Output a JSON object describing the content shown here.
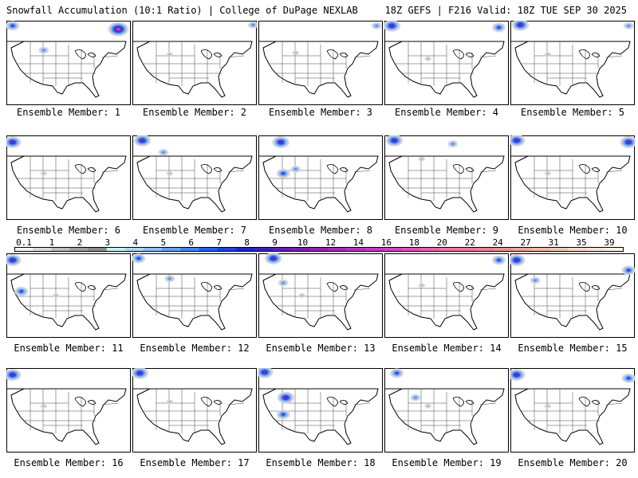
{
  "header": {
    "title_left": "Snowfall Accumulation (10:1 Ratio) | College of DuPage NEXLAB",
    "title_right": "18Z GEFS | F216 Valid: 18Z TUE SEP 30 2025"
  },
  "members": [
    {
      "label": "Ensemble Member: 1",
      "snow": [
        [
          0.05,
          0.06,
          3
        ],
        [
          0.9,
          0.1,
          5
        ],
        [
          0.3,
          0.35,
          2
        ]
      ]
    },
    {
      "label": "Ensemble Member: 2",
      "snow": [
        [
          0.97,
          0.05,
          2
        ],
        [
          0.3,
          0.4,
          1
        ]
      ]
    },
    {
      "label": "Ensemble Member: 3",
      "snow": [
        [
          0.95,
          0.06,
          2
        ],
        [
          0.3,
          0.38,
          1
        ]
      ]
    },
    {
      "label": "Ensemble Member: 4",
      "snow": [
        [
          0.06,
          0.06,
          4
        ],
        [
          0.92,
          0.08,
          3
        ],
        [
          0.35,
          0.45,
          1
        ]
      ]
    },
    {
      "label": "Ensemble Member: 5",
      "snow": [
        [
          0.08,
          0.05,
          4
        ],
        [
          0.95,
          0.06,
          2
        ],
        [
          0.3,
          0.4,
          1
        ]
      ]
    },
    {
      "label": "Ensemble Member: 6",
      "snow": [
        [
          0.05,
          0.08,
          4
        ],
        [
          0.3,
          0.45,
          1
        ]
      ]
    },
    {
      "label": "Ensemble Member: 7",
      "snow": [
        [
          0.08,
          0.06,
          4
        ],
        [
          0.25,
          0.2,
          2
        ],
        [
          0.3,
          0.45,
          1
        ]
      ]
    },
    {
      "label": "Ensemble Member: 8",
      "snow": [
        [
          0.18,
          0.08,
          4
        ],
        [
          0.2,
          0.45,
          3
        ],
        [
          0.3,
          0.4,
          2
        ]
      ]
    },
    {
      "label": "Ensemble Member: 9",
      "snow": [
        [
          0.08,
          0.06,
          4
        ],
        [
          0.3,
          0.28,
          1
        ],
        [
          0.55,
          0.1,
          2
        ]
      ]
    },
    {
      "label": "Ensemble Member: 10",
      "snow": [
        [
          0.05,
          0.06,
          4
        ],
        [
          0.95,
          0.08,
          4
        ],
        [
          0.3,
          0.45,
          1
        ]
      ]
    },
    {
      "label": "Ensemble Member: 11",
      "snow": [
        [
          0.05,
          0.08,
          4
        ],
        [
          0.12,
          0.45,
          3
        ],
        [
          0.4,
          0.5,
          1
        ]
      ]
    },
    {
      "label": "Ensemble Member: 12",
      "snow": [
        [
          0.05,
          0.06,
          3
        ],
        [
          0.3,
          0.3,
          2
        ]
      ]
    },
    {
      "label": "Ensemble Member: 13",
      "snow": [
        [
          0.12,
          0.06,
          4
        ],
        [
          0.2,
          0.35,
          2
        ],
        [
          0.35,
          0.5,
          1
        ]
      ]
    },
    {
      "label": "Ensemble Member: 14",
      "snow": [
        [
          0.92,
          0.08,
          3
        ],
        [
          0.3,
          0.38,
          1
        ]
      ]
    },
    {
      "label": "Ensemble Member: 15",
      "snow": [
        [
          0.05,
          0.08,
          4
        ],
        [
          0.95,
          0.2,
          3
        ],
        [
          0.2,
          0.32,
          2
        ]
      ]
    },
    {
      "label": "Ensemble Member: 16",
      "snow": [
        [
          0.05,
          0.08,
          4
        ],
        [
          0.3,
          0.45,
          1
        ]
      ]
    },
    {
      "label": "Ensemble Member: 17",
      "snow": [
        [
          0.06,
          0.06,
          4
        ],
        [
          0.3,
          0.4,
          1
        ]
      ]
    },
    {
      "label": "Ensemble Member: 18",
      "snow": [
        [
          0.05,
          0.05,
          4
        ],
        [
          0.22,
          0.35,
          4
        ],
        [
          0.2,
          0.55,
          3
        ]
      ]
    },
    {
      "label": "Ensemble Member: 19",
      "snow": [
        [
          0.1,
          0.06,
          3
        ],
        [
          0.25,
          0.35,
          2
        ],
        [
          0.35,
          0.45,
          1
        ]
      ]
    },
    {
      "label": "Ensemble Member: 20",
      "snow": [
        [
          0.05,
          0.08,
          4
        ],
        [
          0.95,
          0.12,
          3
        ],
        [
          0.3,
          0.45,
          1
        ]
      ]
    }
  ],
  "colorbar": {
    "labels": [
      "0.1",
      "1",
      "2",
      "3",
      "4",
      "5",
      "6",
      "7",
      "8",
      "9",
      "10",
      "12",
      "14",
      "16",
      "18",
      "20",
      "22",
      "24",
      "27",
      "31",
      "35",
      "39"
    ],
    "colors": [
      "#f2f2f2",
      "#d9d9d9",
      "#bdbdbd",
      "#a0a0a0",
      "#8c8c8c",
      "#c8f0f0",
      "#a8d8f0",
      "#8cc0f0",
      "#6ca0e8",
      "#4c80f0",
      "#2c5cf0",
      "#2040e0",
      "#1e28c8",
      "#4020c0",
      "#6020b8",
      "#7820b0",
      "#8c28b0",
      "#a030b0",
      "#b038b0",
      "#c040b8",
      "#d048b8",
      "#e050b8",
      "#e860b0",
      "#f070a8",
      "#e878a0",
      "#e08898",
      "#e09890",
      "#e8a8a0",
      "#f0b8a8",
      "#f0c8b8",
      "#f4d8c8",
      "#f8e4d8",
      "#fcefe4"
    ]
  },
  "snow_colors": [
    "#d8d8d8",
    "#9ec0f0",
    "#5a8cf0",
    "#2040e0",
    "#8020b0",
    "#e050b8"
  ]
}
